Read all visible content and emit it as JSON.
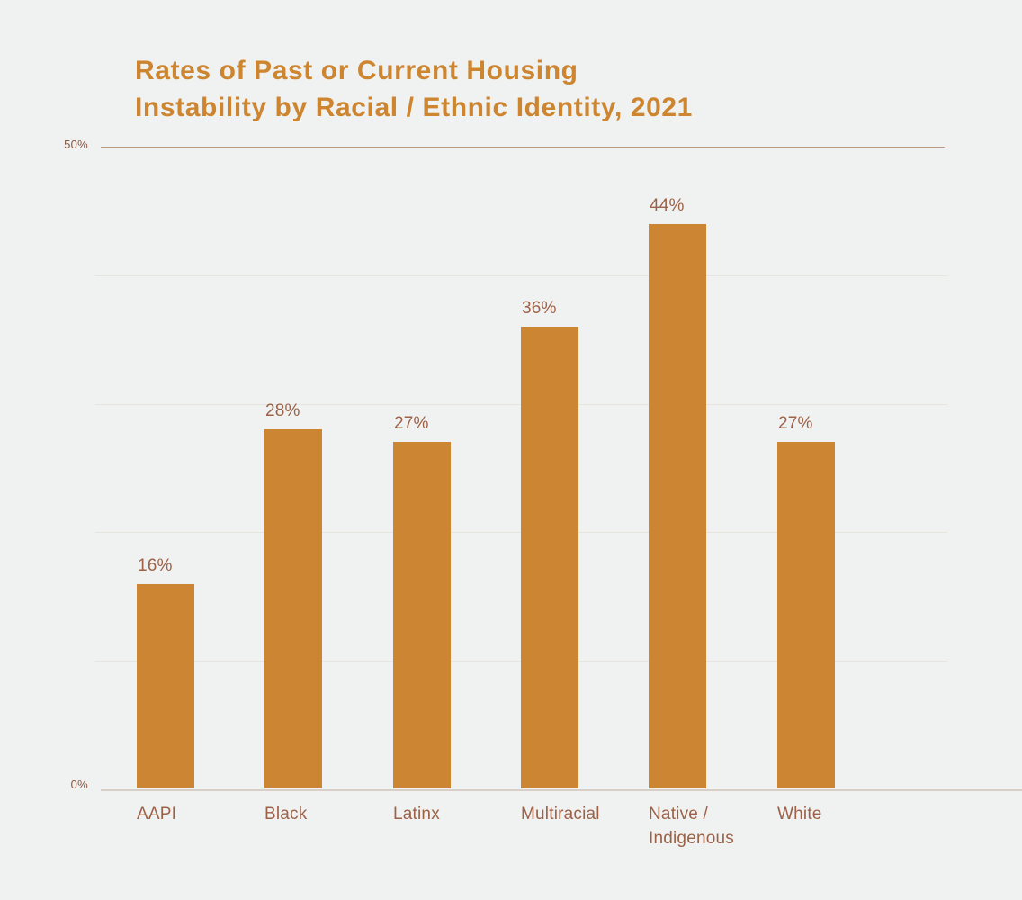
{
  "title": {
    "line1": "Rates of Past or Current Housing",
    "line2": "Instability by Racial / Ethnic Identity, 2021"
  },
  "y_axis": {
    "top_tick_label": "50%",
    "bottom_tick_label": "0%"
  },
  "chart_data": {
    "type": "bar",
    "title": "Rates of Past or Current Housing Instability by Racial / Ethnic Identity, 2021",
    "categories": [
      "AAPI",
      "Black",
      "Latinx",
      "Multiracial",
      "Native / Indigenous",
      "White"
    ],
    "values": [
      16,
      28,
      27,
      36,
      44,
      27
    ],
    "value_labels": [
      "16%",
      "28%",
      "27%",
      "36%",
      "44%",
      "27%"
    ],
    "xlabel": "",
    "ylabel": "",
    "ylim": [
      0,
      50
    ],
    "labeled_y_ticks": [
      "0%",
      "50%"
    ],
    "gridline_percents": [
      0,
      10,
      20,
      30,
      40,
      50
    ],
    "grid": true,
    "legend": false,
    "colors": {
      "background": "#f0f2f1",
      "bar": "#cc8633",
      "title": "#cd8530",
      "data_label": "#9c6147",
      "category_label": "#9c6147",
      "y_tick_label": "#875641",
      "top_gridline": "#bd9a82",
      "mid_gridline": "#e8e4de",
      "axis_line": "#d9cfc7"
    }
  }
}
